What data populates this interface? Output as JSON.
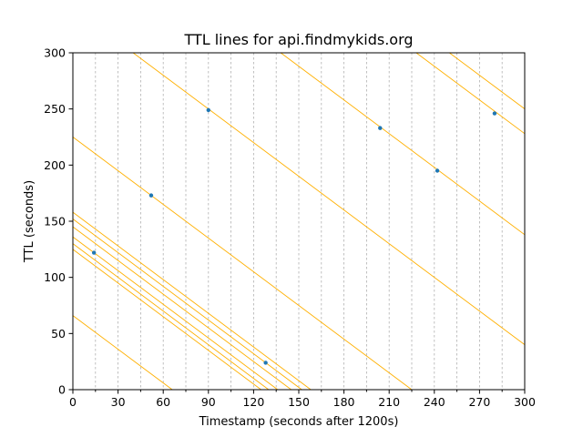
{
  "chart_data": {
    "type": "line",
    "title": "TTL lines for api.findmykids.org",
    "xlabel": "Timestamp (seconds after 1200s)",
    "ylabel": "TTL (seconds)",
    "xlim": [
      0,
      300
    ],
    "ylim": [
      0,
      300
    ],
    "x_major_ticks": [
      0,
      30,
      60,
      90,
      120,
      150,
      180,
      210,
      240,
      270,
      300
    ],
    "x_tick_labels": [
      "0",
      "30",
      "60",
      "90",
      "120",
      "150",
      "180",
      "210",
      "240",
      "270",
      "300"
    ],
    "x_minor_ticks": [
      15,
      45,
      75,
      105,
      135,
      165,
      195,
      225,
      255,
      285
    ],
    "y_major_ticks": [
      0,
      50,
      100,
      150,
      200,
      250,
      300
    ],
    "y_tick_labels": [
      "0",
      "50",
      "100",
      "150",
      "200",
      "250",
      "300"
    ],
    "grid": "vertical dashed lines at every 15 s",
    "line_slope": -1,
    "ttl_lines": [
      {
        "x0": 0,
        "y0": 66
      },
      {
        "x0": 0,
        "y0": 125
      },
      {
        "x0": 0,
        "y0": 130
      },
      {
        "x0": 0,
        "y0": 136
      },
      {
        "x0": 0,
        "y0": 145
      },
      {
        "x0": 0,
        "y0": 152
      },
      {
        "x0": 0,
        "y0": 158
      },
      {
        "x0": 0,
        "y0": 225
      },
      {
        "x0": 40,
        "y0": 300
      },
      {
        "x0": 138,
        "y0": 300
      },
      {
        "x0": 228,
        "y0": 300
      },
      {
        "x0": 250,
        "y0": 300
      }
    ],
    "points": [
      {
        "x": 14,
        "y": 122
      },
      {
        "x": 52,
        "y": 173
      },
      {
        "x": 90,
        "y": 249
      },
      {
        "x": 128,
        "y": 24
      },
      {
        "x": 204,
        "y": 233
      },
      {
        "x": 242,
        "y": 195
      },
      {
        "x": 280,
        "y": 246
      }
    ],
    "colors": {
      "ttl_line": "#ffb000",
      "point": "#1f77b4",
      "grid": "#b0b0b0"
    }
  }
}
